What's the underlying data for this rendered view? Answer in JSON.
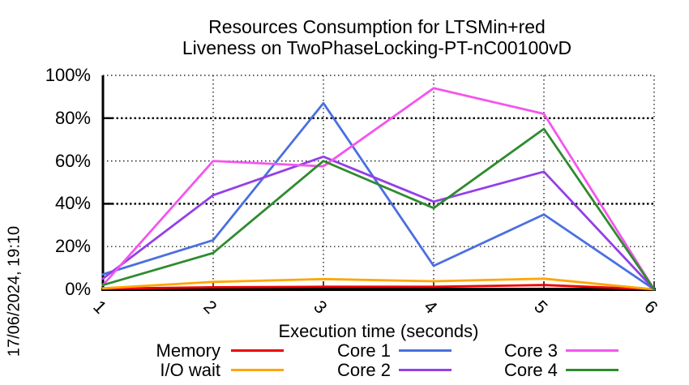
{
  "title": {
    "line1": "Resources Consumption for LTSMin+red",
    "line2": "Liveness on TwoPhaseLocking-PT-nC00100vD"
  },
  "timestamp": "17/06/2024, 19:10",
  "chart_data": {
    "type": "line",
    "title": "Resources Consumption for LTSMin+red — Liveness on TwoPhaseLocking-PT-nC00100vD",
    "xlabel": "Execution time (seconds)",
    "ylabel": "",
    "x": [
      1,
      2,
      3,
      4,
      5,
      6
    ],
    "xlim": [
      1,
      6
    ],
    "ylim": [
      0,
      100
    ],
    "x_tick_labels": [
      "1",
      "2",
      "3",
      "4",
      "5",
      "6"
    ],
    "y_tick_labels": [
      "0%",
      "20%",
      "40%",
      "60%",
      "80%",
      "100%"
    ],
    "y_tick_values": [
      0,
      20,
      40,
      60,
      80,
      100
    ],
    "y_major_grid_values": [
      40,
      80
    ],
    "y_minor_grid_values": [
      20,
      60,
      100
    ],
    "grid": "dotted",
    "legend_position": "bottom",
    "axis_color": "#000000",
    "series": [
      {
        "name": "Memory",
        "color": "#ee0000",
        "values": [
          0.3,
          1.0,
          1.2,
          1.2,
          2.0,
          0
        ]
      },
      {
        "name": "I/O wait",
        "color": "#ffa500",
        "values": [
          0.5,
          3.5,
          4.8,
          3.8,
          5.0,
          0
        ]
      },
      {
        "name": "Core 1",
        "color": "#4a6fe0",
        "values": [
          7,
          23,
          87,
          11,
          35,
          0
        ]
      },
      {
        "name": "Core 2",
        "color": "#9340e8",
        "values": [
          5,
          44,
          62,
          41,
          55,
          0
        ]
      },
      {
        "name": "Core 3",
        "color": "#f455ee",
        "values": [
          2,
          60,
          57.5,
          94,
          82,
          0
        ]
      },
      {
        "name": "Core 4",
        "color": "#2e8b2e",
        "values": [
          2,
          17,
          60,
          38,
          75,
          0
        ]
      }
    ]
  }
}
